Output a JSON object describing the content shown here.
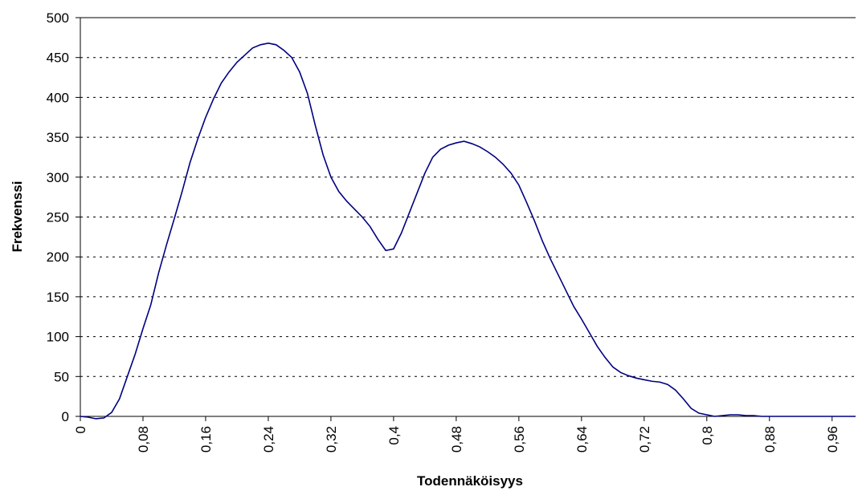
{
  "chart_data": {
    "type": "line",
    "xlabel": "Todennäköisyys",
    "ylabel": "Frekvenssi",
    "x": [
      0,
      0.01,
      0.02,
      0.03,
      0.04,
      0.05,
      0.06,
      0.07,
      0.08,
      0.09,
      0.1,
      0.11,
      0.12,
      0.13,
      0.14,
      0.15,
      0.16,
      0.17,
      0.18,
      0.19,
      0.2,
      0.21,
      0.22,
      0.23,
      0.24,
      0.25,
      0.26,
      0.27,
      0.28,
      0.29,
      0.3,
      0.31,
      0.32,
      0.33,
      0.34,
      0.35,
      0.36,
      0.37,
      0.38,
      0.39,
      0.4,
      0.41,
      0.42,
      0.43,
      0.44,
      0.45,
      0.46,
      0.47,
      0.48,
      0.49,
      0.5,
      0.51,
      0.52,
      0.53,
      0.54,
      0.55,
      0.56,
      0.57,
      0.58,
      0.59,
      0.6,
      0.61,
      0.62,
      0.63,
      0.64,
      0.65,
      0.66,
      0.67,
      0.68,
      0.69,
      0.7,
      0.71,
      0.72,
      0.73,
      0.74,
      0.75,
      0.76,
      0.77,
      0.78,
      0.79,
      0.8,
      0.81,
      0.82,
      0.83,
      0.84,
      0.85,
      0.86,
      0.87,
      0.88,
      0.89,
      0.9,
      0.91,
      0.92,
      0.93,
      0.94,
      0.95,
      0.96,
      0.97,
      0.98,
      0.99
    ],
    "series": [
      {
        "color": "#000080",
        "values": [
          0,
          -1,
          -3,
          -2,
          5,
          22,
          50,
          78,
          110,
          140,
          180,
          215,
          248,
          282,
          318,
          348,
          375,
          398,
          418,
          432,
          444,
          453,
          462,
          466,
          468,
          466,
          459,
          450,
          432,
          405,
          365,
          328,
          300,
          282,
          270,
          260,
          250,
          238,
          222,
          208,
          210,
          230,
          255,
          280,
          305,
          325,
          335,
          340,
          343,
          345,
          342,
          338,
          332,
          325,
          316,
          305,
          290,
          268,
          245,
          220,
          198,
          178,
          158,
          138,
          122,
          105,
          88,
          74,
          62,
          55,
          51,
          48,
          46,
          44,
          43,
          40,
          33,
          22,
          10,
          4,
          2,
          0,
          1,
          2,
          2,
          1,
          1,
          0,
          0,
          0,
          0,
          0,
          0,
          0,
          0,
          0,
          0,
          0,
          0,
          0
        ]
      }
    ],
    "xlim": [
      0,
      0.99
    ],
    "xticks": [
      0,
      {
        "value": 0.08,
        "label": "0,08"
      },
      {
        "value": 0.16,
        "label": "0,16"
      },
      {
        "value": 0.24,
        "label": "0,24"
      },
      {
        "value": 0.32,
        "label": "0,32"
      },
      {
        "value": 0.4,
        "label": "0,4"
      },
      {
        "value": 0.48,
        "label": "0,48"
      },
      {
        "value": 0.56,
        "label": "0,56"
      },
      {
        "value": 0.64,
        "label": "0,64"
      },
      {
        "value": 0.72,
        "label": "0,72"
      },
      {
        "value": 0.8,
        "label": "0,8"
      },
      {
        "value": 0.88,
        "label": "0,88"
      },
      {
        "value": 0.96,
        "label": "0,96"
      }
    ],
    "ylim": [
      0,
      500
    ],
    "yticks": [
      0,
      50,
      100,
      150,
      200,
      250,
      300,
      350,
      400,
      450,
      500
    ],
    "grid": true
  }
}
